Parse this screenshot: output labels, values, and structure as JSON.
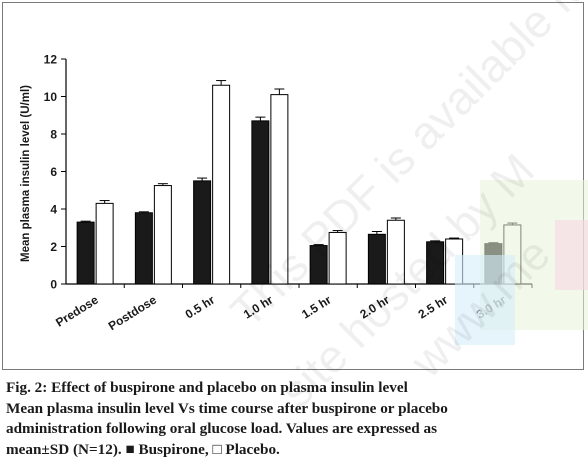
{
  "chart_data": {
    "type": "bar",
    "categories": [
      "Predose",
      "Postdose",
      "0.5 hr",
      "1.0 hr",
      "1.5 hr",
      "2.0 hr",
      "2.5 hr",
      "3.0 hr"
    ],
    "series": [
      {
        "name": "Buspirone",
        "color": "#1a1a1a",
        "values": [
          3.3,
          3.8,
          5.5,
          8.7,
          2.05,
          2.65,
          2.25,
          2.15
        ],
        "errors": [
          0.05,
          0.05,
          0.15,
          0.2,
          0.05,
          0.15,
          0.05,
          0.05
        ]
      },
      {
        "name": "Placebo",
        "color": "#ffffff",
        "values": [
          4.3,
          5.25,
          10.6,
          10.1,
          2.75,
          3.4,
          2.4,
          3.15
        ],
        "errors": [
          0.15,
          0.1,
          0.25,
          0.3,
          0.1,
          0.12,
          0.05,
          0.1
        ]
      }
    ],
    "xlabel": "",
    "ylabel": "Mean plasma insulin level (U/ml)",
    "ylim": [
      0,
      12
    ],
    "yticks": [
      0,
      2,
      4,
      6,
      8,
      10,
      12
    ],
    "grid": false,
    "legend": "none"
  },
  "caption": {
    "line1": "Fig. 2: Effect of buspirone and placebo on plasma insulin level",
    "line2": "Mean plasma insulin level Vs time course after buspirone or placebo",
    "line3": "administration following oral glucose load. Values are expressed as",
    "line4": "mean±SD (N=12). ■ Buspirone, □ Placebo."
  },
  "watermark": {
    "line1": "This PDF is available for",
    "line2": "site hosted by M",
    "line3": "www.me"
  }
}
